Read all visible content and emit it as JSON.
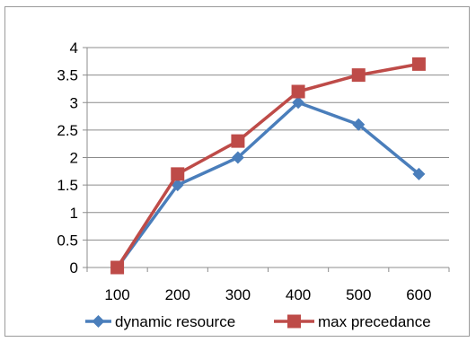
{
  "chart_data": {
    "type": "line",
    "title": "",
    "xlabel": "",
    "ylabel": "",
    "categories": [
      "100",
      "200",
      "300",
      "400",
      "500",
      "600"
    ],
    "ylim": [
      0,
      4
    ],
    "yticks": [
      "0",
      "0.5",
      "1",
      "1.5",
      "2",
      "2.5",
      "3",
      "3.5",
      "4"
    ],
    "grid": "horizontal",
    "legend_position": "bottom",
    "series": [
      {
        "name": "dynamic resource",
        "values": [
          0,
          1.5,
          2.0,
          3.0,
          2.6,
          1.7
        ],
        "color": "#4a7ebb",
        "marker": "diamond"
      },
      {
        "name": "max precedance",
        "values": [
          0,
          1.7,
          2.3,
          3.2,
          3.5,
          3.7
        ],
        "color": "#be4b48",
        "marker": "square"
      }
    ]
  }
}
